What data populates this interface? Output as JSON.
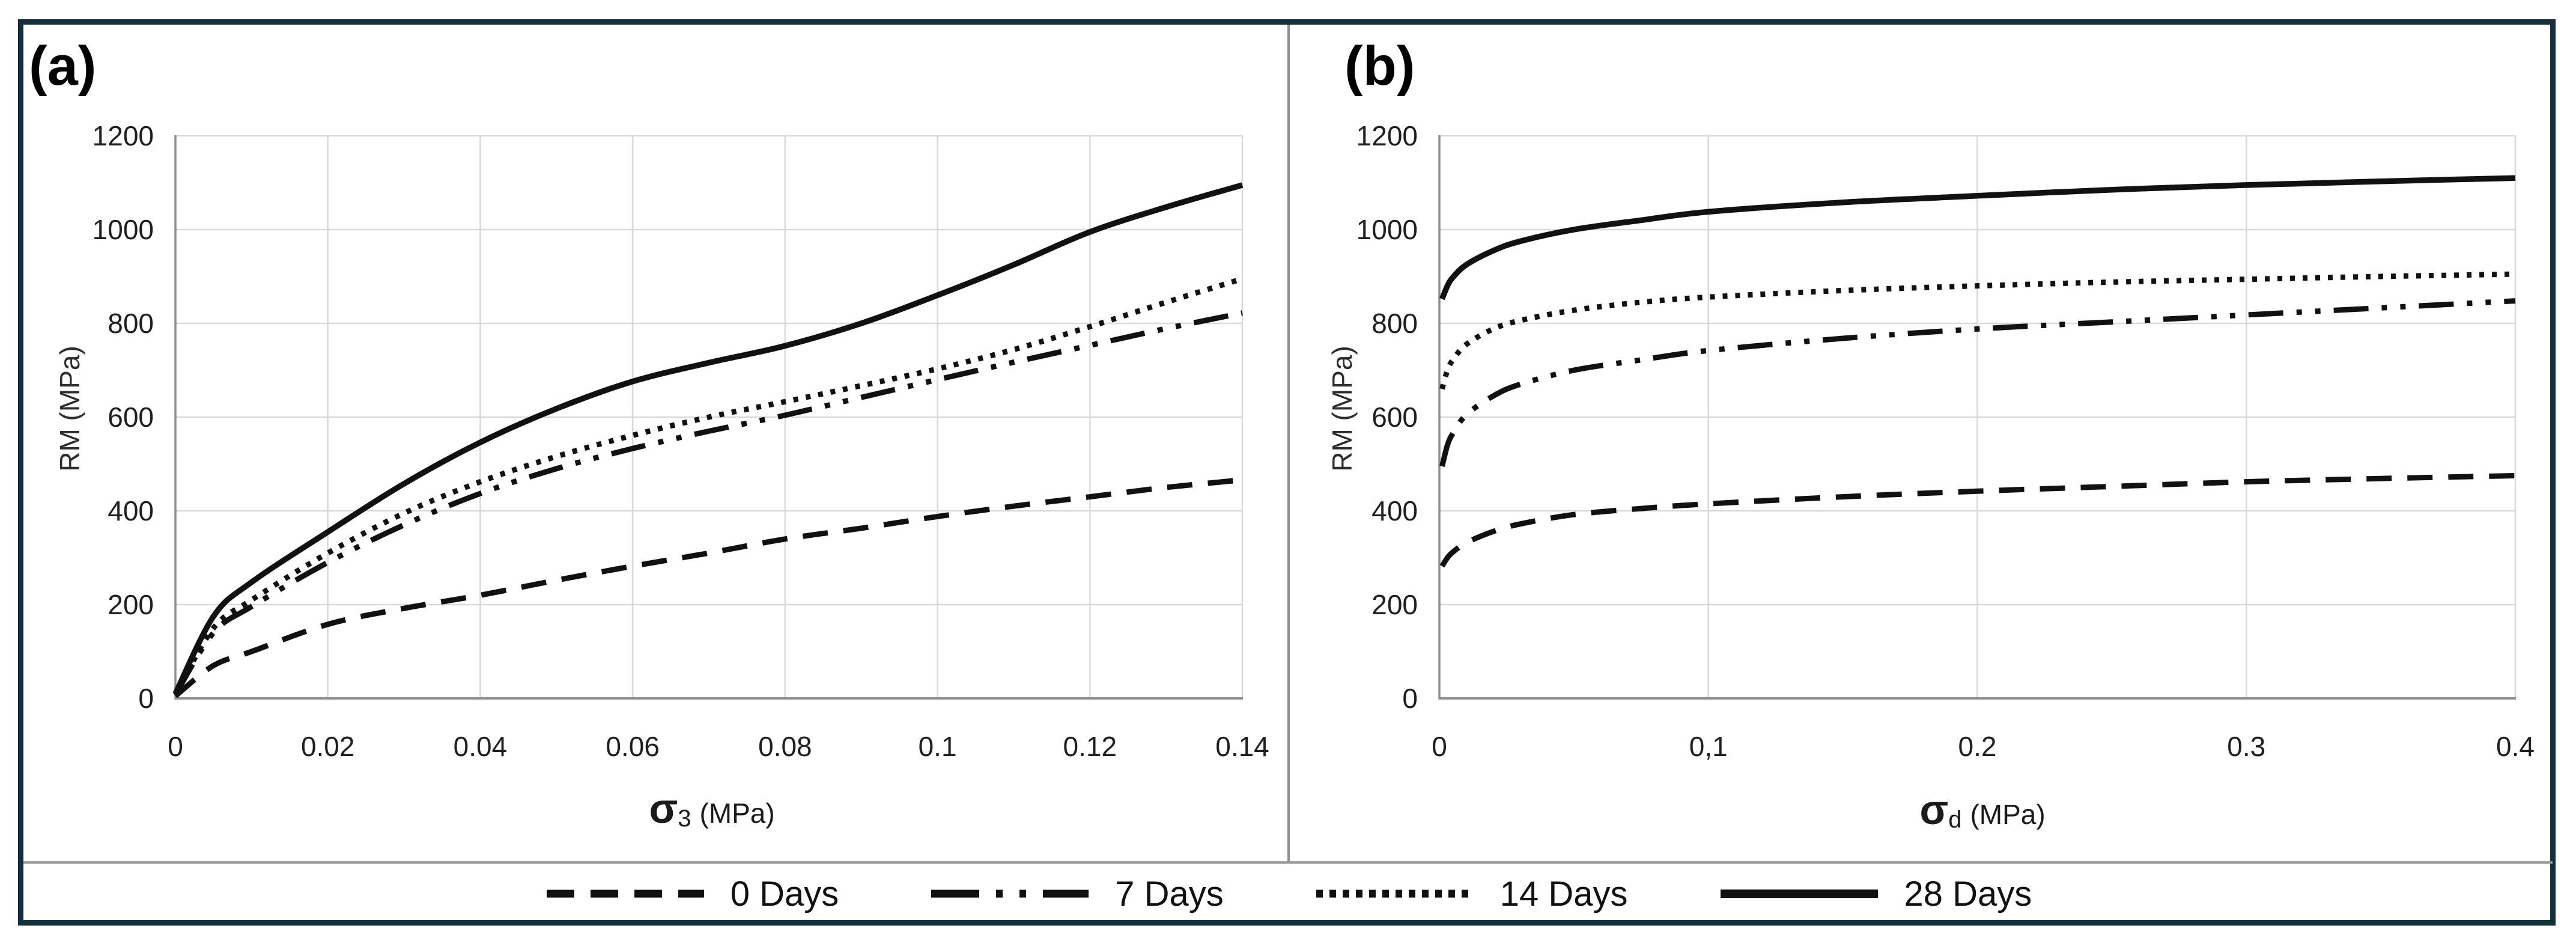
{
  "figure": {
    "panel_a_label": "(a)",
    "panel_b_label": "(b)",
    "y_axis_title": "RM (MPa)",
    "x_axis_a": {
      "sigma": "σ",
      "sub": "3",
      "unit": "(MPa)"
    },
    "x_axis_b": {
      "sigma": "σ",
      "sub": "d",
      "unit": "(MPa)"
    },
    "legend_items": [
      {
        "label": "0 Days",
        "style": "dashed"
      },
      {
        "label": "7 Days",
        "style": "dashdot"
      },
      {
        "label": "14 Days",
        "style": "dotted"
      },
      {
        "label": "28 Days",
        "style": "solid"
      }
    ],
    "colors": {
      "frame_border": "#152e3d",
      "gridline": "#d9d9d9",
      "axis_line": "#8f8f8f",
      "curve": "#111111",
      "tick_text": "#1f1f1f"
    }
  },
  "chart_data": [
    {
      "id": "a",
      "type": "line",
      "panel_label": "(a)",
      "xlabel": "σ3 (MPa)",
      "ylabel": "RM (MPa)",
      "xlim": [
        0,
        0.14
      ],
      "ylim": [
        0,
        1200
      ],
      "grid": true,
      "legend_position": "bottom",
      "x_ticks": [
        {
          "v": 0,
          "label": "0"
        },
        {
          "v": 0.02,
          "label": "0.02"
        },
        {
          "v": 0.04,
          "label": "0.04"
        },
        {
          "v": 0.06,
          "label": "0.06"
        },
        {
          "v": 0.08,
          "label": "0.08"
        },
        {
          "v": 0.1,
          "label": "0.1"
        },
        {
          "v": 0.12,
          "label": "0.12"
        },
        {
          "v": 0.14,
          "label": "0.14"
        }
      ],
      "y_ticks": [
        {
          "v": 0,
          "label": "0"
        },
        {
          "v": 200,
          "label": "200"
        },
        {
          "v": 400,
          "label": "400"
        },
        {
          "v": 600,
          "label": "600"
        },
        {
          "v": 800,
          "label": "800"
        },
        {
          "v": 1000,
          "label": "1000"
        },
        {
          "v": 1200,
          "label": "1200"
        }
      ],
      "series": [
        {
          "name": "0 Days",
          "style": "dashed",
          "x": [
            0,
            0.005,
            0.01,
            0.02,
            0.03,
            0.04,
            0.05,
            0.06,
            0.07,
            0.08,
            0.09,
            0.1,
            0.11,
            0.12,
            0.13,
            0.14
          ],
          "y": [
            5,
            70,
            100,
            158,
            192,
            220,
            252,
            282,
            310,
            340,
            363,
            388,
            410,
            430,
            450,
            466
          ]
        },
        {
          "name": "7 Days",
          "style": "dashdot",
          "x": [
            0,
            0.005,
            0.01,
            0.02,
            0.03,
            0.04,
            0.05,
            0.06,
            0.07,
            0.08,
            0.09,
            0.1,
            0.11,
            0.12,
            0.13,
            0.14
          ],
          "y": [
            8,
            140,
            196,
            290,
            370,
            437,
            490,
            533,
            570,
            604,
            642,
            680,
            717,
            753,
            789,
            822
          ]
        },
        {
          "name": "14 Days",
          "style": "dotted",
          "x": [
            0,
            0.005,
            0.01,
            0.02,
            0.03,
            0.04,
            0.05,
            0.06,
            0.07,
            0.08,
            0.09,
            0.1,
            0.11,
            0.12,
            0.13,
            0.14
          ],
          "y": [
            8,
            150,
            210,
            310,
            395,
            462,
            516,
            561,
            600,
            633,
            667,
            703,
            744,
            793,
            845,
            895
          ]
        },
        {
          "name": "28 Days",
          "style": "solid",
          "x": [
            0,
            0.005,
            0.01,
            0.02,
            0.03,
            0.04,
            0.05,
            0.06,
            0.07,
            0.08,
            0.09,
            0.1,
            0.11,
            0.12,
            0.13,
            0.14
          ],
          "y": [
            10,
            175,
            248,
            355,
            458,
            546,
            618,
            676,
            716,
            752,
            800,
            860,
            925,
            995,
            1048,
            1095
          ]
        }
      ]
    },
    {
      "id": "b",
      "type": "line",
      "panel_label": "(b)",
      "xlabel": "σd (MPa)",
      "ylabel": "RM (MPa)",
      "xlim": [
        0,
        0.4
      ],
      "ylim": [
        0,
        1200
      ],
      "grid": true,
      "legend_position": "bottom",
      "x_ticks": [
        {
          "v": 0,
          "label": "0"
        },
        {
          "v": 0.1,
          "label": "0,1"
        },
        {
          "v": 0.2,
          "label": "0.2"
        },
        {
          "v": 0.3,
          "label": "0.3"
        },
        {
          "v": 0.4,
          "label": "0.4"
        }
      ],
      "y_ticks": [
        {
          "v": 0,
          "label": "0"
        },
        {
          "v": 200,
          "label": "200"
        },
        {
          "v": 400,
          "label": "400"
        },
        {
          "v": 600,
          "label": "600"
        },
        {
          "v": 800,
          "label": "800"
        },
        {
          "v": 1000,
          "label": "1000"
        },
        {
          "v": 1200,
          "label": "1200"
        }
      ],
      "series": [
        {
          "name": "0 Days",
          "style": "dashed",
          "x": [
            0.001,
            0.003,
            0.005,
            0.01,
            0.02,
            0.03,
            0.05,
            0.075,
            0.1,
            0.15,
            0.2,
            0.25,
            0.3,
            0.35,
            0.4
          ],
          "y": [
            282,
            300,
            312,
            332,
            356,
            372,
            392,
            405,
            415,
            430,
            442,
            452,
            462,
            469,
            475
          ]
        },
        {
          "name": "7 Days",
          "style": "dashdot",
          "x": [
            0.001,
            0.003,
            0.005,
            0.01,
            0.02,
            0.03,
            0.05,
            0.075,
            0.1,
            0.15,
            0.2,
            0.25,
            0.3,
            0.35,
            0.4
          ],
          "y": [
            495,
            540,
            565,
            605,
            645,
            670,
            700,
            722,
            742,
            768,
            788,
            803,
            818,
            833,
            848
          ]
        },
        {
          "name": "14 Days",
          "style": "dotted",
          "x": [
            0.001,
            0.003,
            0.005,
            0.01,
            0.02,
            0.03,
            0.05,
            0.075,
            0.1,
            0.15,
            0.2,
            0.25,
            0.3,
            0.35,
            0.4
          ],
          "y": [
            660,
            700,
            722,
            755,
            788,
            806,
            828,
            845,
            856,
            870,
            880,
            888,
            894,
            900,
            905
          ]
        },
        {
          "name": "28 Days",
          "style": "solid",
          "x": [
            0.001,
            0.003,
            0.005,
            0.01,
            0.02,
            0.03,
            0.05,
            0.075,
            0.1,
            0.15,
            0.2,
            0.25,
            0.3,
            0.35,
            0.4
          ],
          "y": [
            852,
            880,
            898,
            925,
            955,
            975,
            1000,
            1020,
            1038,
            1058,
            1072,
            1085,
            1095,
            1103,
            1110
          ]
        }
      ]
    }
  ]
}
